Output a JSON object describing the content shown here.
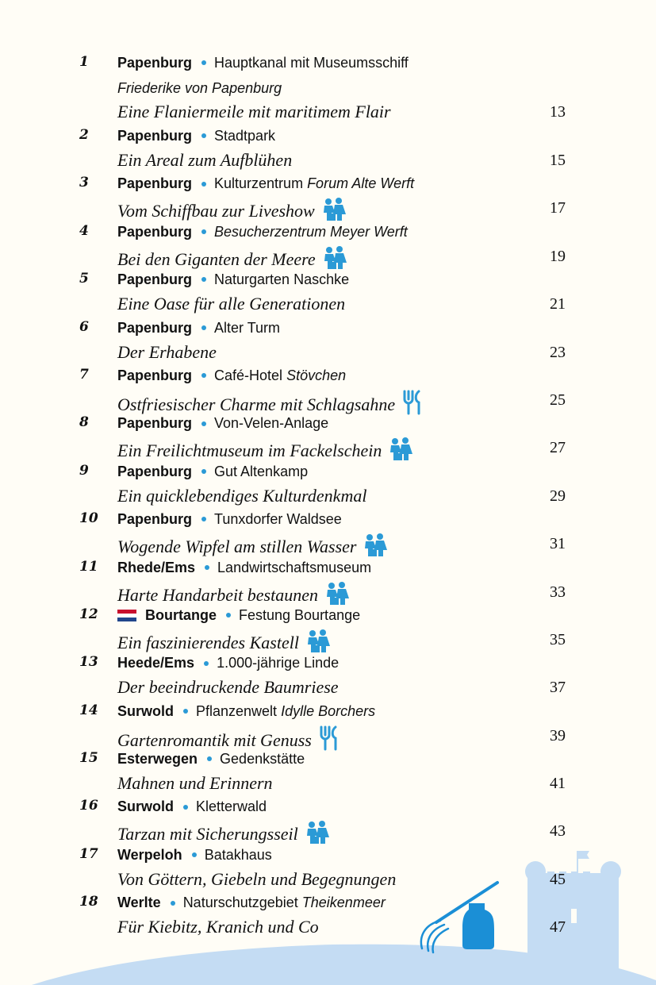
{
  "accent_color": "#2b9ad6",
  "illustration_color": "#c4dcf3",
  "entries": [
    {
      "num": "1",
      "location": "Papenburg",
      "place": "Hauptkanal mit Museumsschiff",
      "place_italic": "",
      "place_line2": "Friederike von Papenburg",
      "subtitle": "Eine Flaniermeile mit maritimem Flair",
      "page": "13",
      "icon": ""
    },
    {
      "num": "2",
      "location": "Papenburg",
      "place": "Stadtpark",
      "place_italic": "",
      "subtitle": "Ein Areal zum Aufblühen",
      "page": "15",
      "icon": ""
    },
    {
      "num": "3",
      "location": "Papenburg",
      "place": "Kulturzentrum ",
      "place_italic": "Forum Alte Werft",
      "subtitle": "Vom Schiffbau zur Liveshow",
      "page": "17",
      "icon": "family-icon"
    },
    {
      "num": "4",
      "location": "Papenburg",
      "place": "",
      "place_italic": "Besucherzentrum Meyer Werft",
      "subtitle": "Bei den Giganten der Meere",
      "page": "19",
      "icon": "family-icon"
    },
    {
      "num": "5",
      "location": "Papenburg",
      "place": "Naturgarten Naschke",
      "place_italic": "",
      "subtitle": "Eine Oase für alle Generationen",
      "page": "21",
      "icon": ""
    },
    {
      "num": "6",
      "location": "Papenburg",
      "place": "Alter Turm",
      "place_italic": "",
      "subtitle": "Der Erhabene",
      "page": "23",
      "icon": ""
    },
    {
      "num": "7",
      "location": "Papenburg",
      "place": "Café-Hotel ",
      "place_italic": "Stövchen",
      "subtitle": "Ostfriesischer Charme mit Schlagsahne",
      "page": "25",
      "icon": "fork-knife-icon"
    },
    {
      "num": "8",
      "location": "Papenburg",
      "place": "Von-Velen-Anlage",
      "place_italic": "",
      "subtitle": "Ein Freilichtmuseum im Fackelschein",
      "page": "27",
      "icon": "family-icon"
    },
    {
      "num": "9",
      "location": "Papenburg",
      "place": "Gut Altenkamp",
      "place_italic": "",
      "subtitle": "Ein quicklebendiges Kulturdenkmal",
      "page": "29",
      "icon": ""
    },
    {
      "num": "10",
      "location": "Papenburg",
      "place": "Tunxdorfer Waldsee",
      "place_italic": "",
      "subtitle": "Wogende Wipfel am stillen Wasser",
      "page": "31",
      "icon": "family-icon"
    },
    {
      "num": "11",
      "location": "Rhede/Ems",
      "place": "Landwirtschaftsmuseum",
      "place_italic": "",
      "subtitle": "Harte Handarbeit bestaunen",
      "page": "33",
      "icon": "family-icon"
    },
    {
      "num": "12",
      "location": "Bourtange",
      "flag": "netherlands-flag-icon",
      "place": "Festung Bourtange",
      "place_italic": "",
      "subtitle": "Ein faszinierendes Kastell",
      "page": "35",
      "icon": "family-icon"
    },
    {
      "num": "13",
      "location": "Heede/Ems",
      "place": "1.000-jährige Linde",
      "place_italic": "",
      "subtitle": "Der beeindruckende Baumriese",
      "page": "37",
      "icon": ""
    },
    {
      "num": "14",
      "location": "Surwold",
      "place": "Pflanzenwelt ",
      "place_italic": "Idylle Borchers",
      "subtitle": "Gartenromantik mit Genuss",
      "page": "39",
      "icon": "fork-knife-icon"
    },
    {
      "num": "15",
      "location": "Esterwegen",
      "place": "Gedenkstätte",
      "place_italic": "",
      "subtitle": "Mahnen und Erinnern",
      "page": "41",
      "icon": ""
    },
    {
      "num": "16",
      "location": "Surwold",
      "place": "Kletterwald",
      "place_italic": "",
      "subtitle": "Tarzan mit Sicherungsseil",
      "page": "43",
      "icon": "family-icon"
    },
    {
      "num": "17",
      "location": "Werpeloh",
      "place": "Batakhaus",
      "place_italic": "",
      "subtitle": "Von Göttern, Giebeln und Begegnungen",
      "page": "45",
      "icon": ""
    },
    {
      "num": "18",
      "location": "Werlte",
      "place": "Naturschutzgebiet ",
      "place_italic": "Theikenmeer",
      "subtitle": "Für Kiebitz, Kranich und Co",
      "page": "47",
      "icon": ""
    }
  ]
}
